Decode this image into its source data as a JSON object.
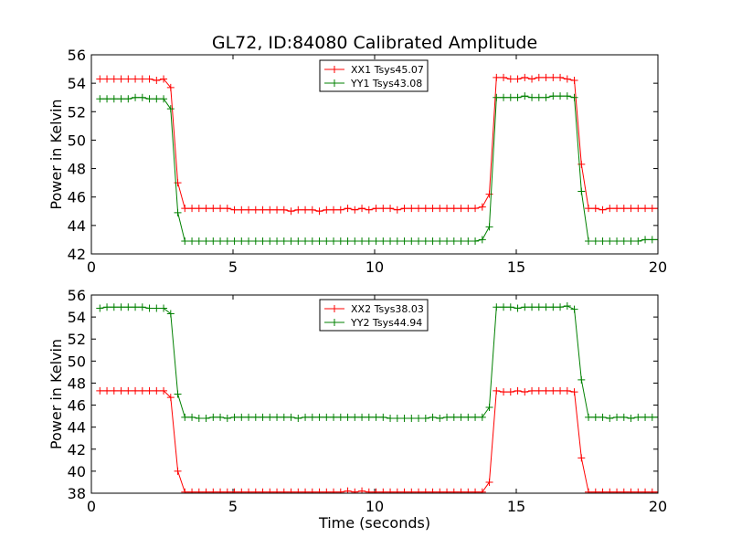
{
  "figure": {
    "title": "GL72, ID:84080 Calibrated Amplitude",
    "xlabel": "Time (seconds)"
  },
  "chart_data": [
    {
      "type": "line",
      "title": "GL72, ID:84080 Calibrated Amplitude",
      "xlabel": "",
      "ylabel": "Power in Kelvin",
      "xlim": [
        0,
        20
      ],
      "ylim": [
        42,
        56
      ],
      "xticks": [
        0,
        5,
        10,
        15,
        20
      ],
      "yticks": [
        42,
        44,
        46,
        48,
        50,
        52,
        54,
        56
      ],
      "legend": "top-center",
      "grid": false,
      "x": [
        0.3,
        0.55,
        0.8,
        1.05,
        1.3,
        1.55,
        1.8,
        2.05,
        2.3,
        2.55,
        2.8,
        3.05,
        3.3,
        3.55,
        3.8,
        4.05,
        4.3,
        4.55,
        4.8,
        5.05,
        5.3,
        5.55,
        5.8,
        6.05,
        6.3,
        6.55,
        6.8,
        7.05,
        7.3,
        7.55,
        7.8,
        8.05,
        8.3,
        8.55,
        8.8,
        9.05,
        9.3,
        9.55,
        9.8,
        10.05,
        10.3,
        10.55,
        10.8,
        11.05,
        11.3,
        11.55,
        11.8,
        12.05,
        12.3,
        12.55,
        12.8,
        13.05,
        13.3,
        13.55,
        13.8,
        14.05,
        14.3,
        14.55,
        14.8,
        15.05,
        15.3,
        15.55,
        15.8,
        16.05,
        16.3,
        16.55,
        16.8,
        17.05,
        17.3,
        17.55,
        17.8,
        18.05,
        18.3,
        18.55,
        18.8,
        19.05,
        19.3,
        19.55,
        19.8,
        20.05
      ],
      "series": [
        {
          "name": "XX1 Tsys45.07",
          "color": "#ff0000",
          "values": [
            54.3,
            54.3,
            54.3,
            54.3,
            54.3,
            54.3,
            54.3,
            54.3,
            54.2,
            54.3,
            53.7,
            47.0,
            45.2,
            45.2,
            45.2,
            45.2,
            45.2,
            45.2,
            45.2,
            45.1,
            45.1,
            45.1,
            45.1,
            45.1,
            45.1,
            45.1,
            45.1,
            45.0,
            45.1,
            45.1,
            45.1,
            45.0,
            45.1,
            45.1,
            45.1,
            45.2,
            45.1,
            45.2,
            45.1,
            45.2,
            45.2,
            45.2,
            45.1,
            45.2,
            45.2,
            45.2,
            45.2,
            45.2,
            45.2,
            45.2,
            45.2,
            45.2,
            45.2,
            45.2,
            45.3,
            46.2,
            54.4,
            54.4,
            54.3,
            54.3,
            54.4,
            54.3,
            54.4,
            54.4,
            54.4,
            54.4,
            54.3,
            54.2,
            48.3,
            45.2,
            45.2,
            45.1,
            45.2,
            45.2,
            45.2,
            45.2,
            45.2,
            45.2,
            45.2,
            45.2
          ]
        },
        {
          "name": "YY1 Tsys43.08",
          "color": "#008000",
          "values": [
            52.9,
            52.9,
            52.9,
            52.9,
            52.9,
            53.0,
            53.0,
            52.9,
            52.9,
            52.9,
            52.2,
            44.9,
            42.9,
            42.9,
            42.9,
            42.9,
            42.9,
            42.9,
            42.9,
            42.9,
            42.9,
            42.9,
            42.9,
            42.9,
            42.9,
            42.9,
            42.9,
            42.9,
            42.9,
            42.9,
            42.9,
            42.9,
            42.9,
            42.9,
            42.9,
            42.9,
            42.9,
            42.9,
            42.9,
            42.9,
            42.9,
            42.9,
            42.9,
            42.9,
            42.9,
            42.9,
            42.9,
            42.9,
            42.9,
            42.9,
            42.9,
            42.9,
            42.9,
            42.9,
            43.0,
            43.9,
            53.0,
            53.0,
            53.0,
            53.0,
            53.1,
            53.0,
            53.0,
            53.0,
            53.1,
            53.1,
            53.1,
            53.0,
            46.4,
            42.9,
            42.9,
            42.9,
            42.9,
            42.9,
            42.9,
            42.9,
            42.9,
            43.0,
            43.0,
            43.0
          ]
        }
      ]
    },
    {
      "type": "line",
      "title": "",
      "xlabel": "Time (seconds)",
      "ylabel": "Power in Kelvin",
      "xlim": [
        0,
        20
      ],
      "ylim": [
        38,
        56
      ],
      "xticks": [
        0,
        5,
        10,
        15,
        20
      ],
      "yticks": [
        38,
        40,
        42,
        44,
        46,
        48,
        50,
        52,
        54,
        56
      ],
      "legend": "top-center",
      "grid": false,
      "x": [
        0.3,
        0.55,
        0.8,
        1.05,
        1.3,
        1.55,
        1.8,
        2.05,
        2.3,
        2.55,
        2.8,
        3.05,
        3.3,
        3.55,
        3.8,
        4.05,
        4.3,
        4.55,
        4.8,
        5.05,
        5.3,
        5.55,
        5.8,
        6.05,
        6.3,
        6.55,
        6.8,
        7.05,
        7.3,
        7.55,
        7.8,
        8.05,
        8.3,
        8.55,
        8.8,
        9.05,
        9.3,
        9.55,
        9.8,
        10.05,
        10.3,
        10.55,
        10.8,
        11.05,
        11.3,
        11.55,
        11.8,
        12.05,
        12.3,
        12.55,
        12.8,
        13.05,
        13.3,
        13.55,
        13.8,
        14.05,
        14.3,
        14.55,
        14.8,
        15.05,
        15.3,
        15.55,
        15.8,
        16.05,
        16.3,
        16.55,
        16.8,
        17.05,
        17.3,
        17.55,
        17.8,
        18.05,
        18.3,
        18.55,
        18.8,
        19.05,
        19.3,
        19.55,
        19.8,
        20.05
      ],
      "series": [
        {
          "name": "XX2 Tsys38.03",
          "color": "#ff0000",
          "values": [
            47.3,
            47.3,
            47.3,
            47.3,
            47.3,
            47.3,
            47.3,
            47.3,
            47.3,
            47.3,
            46.7,
            40.0,
            38.1,
            38.1,
            38.1,
            38.1,
            38.1,
            38.1,
            38.1,
            38.1,
            38.1,
            38.1,
            38.1,
            38.1,
            38.1,
            38.1,
            38.1,
            38.1,
            38.1,
            38.1,
            38.1,
            38.1,
            38.1,
            38.1,
            38.1,
            38.2,
            38.1,
            38.2,
            38.1,
            38.1,
            38.1,
            38.1,
            38.1,
            38.1,
            38.1,
            38.1,
            38.1,
            38.1,
            38.1,
            38.1,
            38.1,
            38.1,
            38.1,
            38.1,
            38.1,
            39.0,
            47.3,
            47.2,
            47.2,
            47.3,
            47.2,
            47.3,
            47.3,
            47.3,
            47.3,
            47.3,
            47.3,
            47.2,
            41.2,
            38.1,
            38.1,
            38.1,
            38.1,
            38.1,
            38.1,
            38.1,
            38.1,
            38.1,
            38.1,
            38.1
          ]
        },
        {
          "name": "YY2 Tsys44.94",
          "color": "#008000",
          "values": [
            54.8,
            54.9,
            54.9,
            54.9,
            54.9,
            54.9,
            54.9,
            54.8,
            54.8,
            54.8,
            54.3,
            47.0,
            44.9,
            44.9,
            44.8,
            44.8,
            44.9,
            44.9,
            44.8,
            44.9,
            44.9,
            44.9,
            44.9,
            44.9,
            44.9,
            44.9,
            44.9,
            44.9,
            44.8,
            44.9,
            44.9,
            44.9,
            44.9,
            44.9,
            44.9,
            44.9,
            44.9,
            44.9,
            44.9,
            44.9,
            44.9,
            44.8,
            44.8,
            44.8,
            44.8,
            44.8,
            44.8,
            44.9,
            44.8,
            44.9,
            44.9,
            44.9,
            44.9,
            44.9,
            44.9,
            45.8,
            54.9,
            54.9,
            54.9,
            54.8,
            54.9,
            54.9,
            54.9,
            54.9,
            54.9,
            54.9,
            55.0,
            54.7,
            48.3,
            44.9,
            44.9,
            44.9,
            44.8,
            44.9,
            44.9,
            44.8,
            44.9,
            44.9,
            44.9,
            44.9
          ]
        }
      ]
    }
  ]
}
